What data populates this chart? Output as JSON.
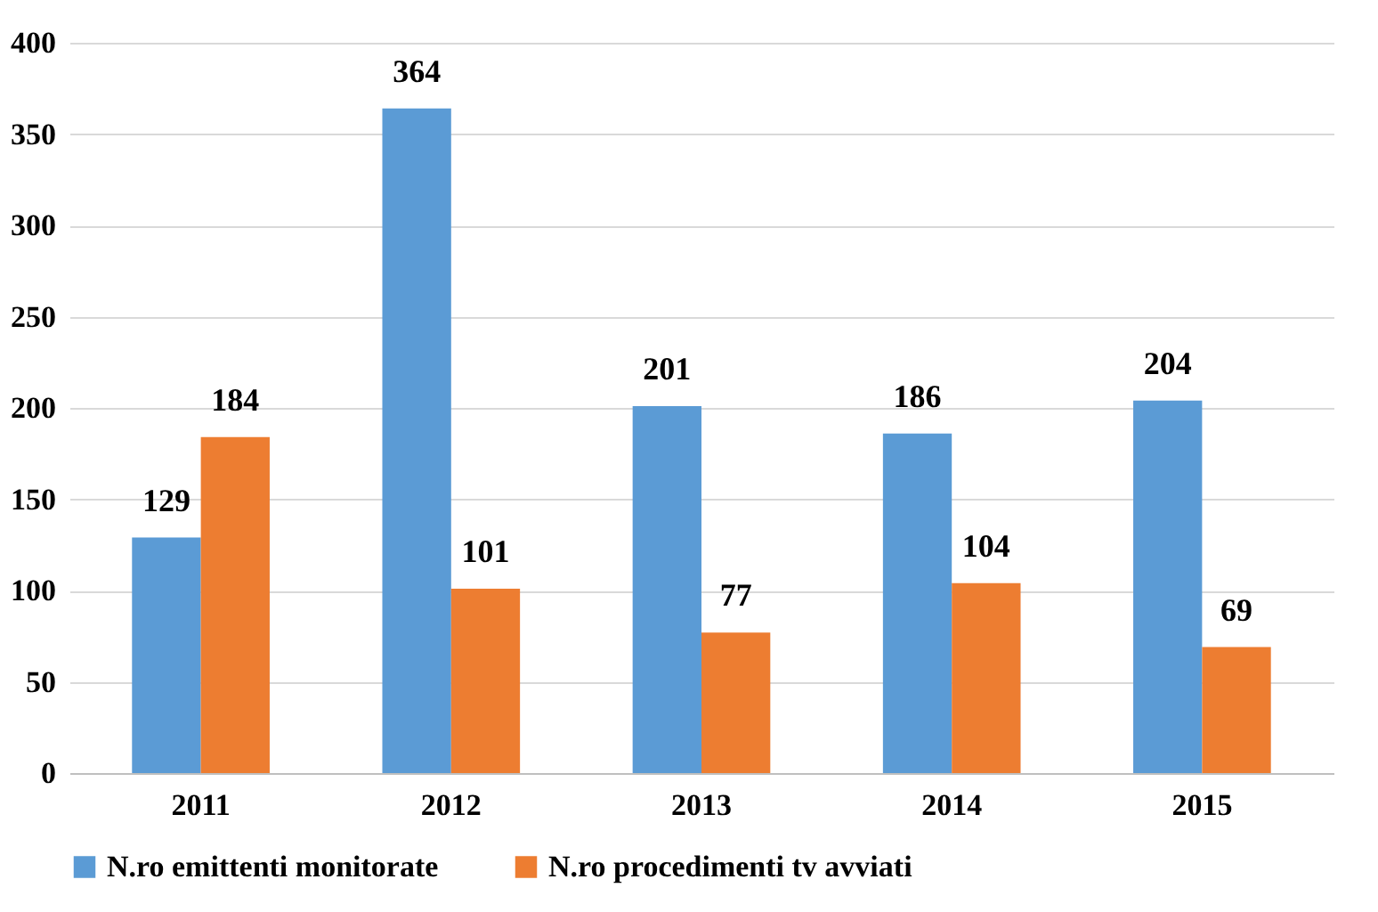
{
  "chart_data": {
    "type": "bar",
    "categories": [
      "2011",
      "2012",
      "2013",
      "2014",
      "2015"
    ],
    "series": [
      {
        "name": "N.ro emittenti monitorate",
        "color": "#5b9bd5",
        "values": [
          129,
          364,
          201,
          186,
          204
        ]
      },
      {
        "name": "N.ro procedimenti tv avviati",
        "color": "#ed7d31",
        "values": [
          184,
          101,
          77,
          104,
          69
        ]
      }
    ],
    "ylim": [
      0,
      400
    ],
    "yticks": [
      0,
      50,
      100,
      150,
      200,
      250,
      300,
      350,
      400
    ],
    "grid": "y",
    "legend": "bottom",
    "data_labels": true
  }
}
